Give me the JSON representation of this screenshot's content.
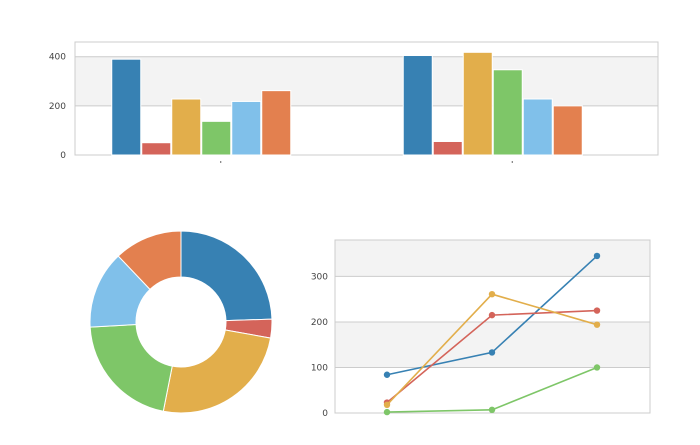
{
  "colors": [
    "#3781b3",
    "#d4645a",
    "#e2ae4b",
    "#7ec668",
    "#80c0ea",
    "#e3804f"
  ],
  "chart_data": [
    {
      "type": "bar",
      "categories": [
        "",
        ""
      ],
      "ylim": [
        0,
        460
      ],
      "yticks": [
        0,
        200,
        400
      ],
      "grid": true,
      "series": [
        {
          "values": [
            390,
            405
          ]
        },
        {
          "values": [
            50,
            55
          ]
        },
        {
          "values": [
            228,
            418
          ]
        },
        {
          "values": [
            137,
            347
          ]
        },
        {
          "values": [
            218,
            228
          ]
        },
        {
          "values": [
            262,
            200
          ]
        }
      ]
    },
    {
      "type": "pie",
      "donut": true,
      "values": [
        405,
        55,
        418,
        347,
        228,
        200
      ]
    },
    {
      "type": "line",
      "x": [
        1,
        2,
        3
      ],
      "ylim": [
        0,
        380
      ],
      "yticks": [
        0,
        100,
        200,
        300
      ],
      "grid": true,
      "series": [
        {
          "values": [
            84,
            133,
            345
          ]
        },
        {
          "values": [
            23,
            215,
            225
          ]
        },
        {
          "values": [
            18,
            261,
            194
          ]
        },
        {
          "values": [
            2,
            7,
            100
          ]
        }
      ]
    }
  ]
}
